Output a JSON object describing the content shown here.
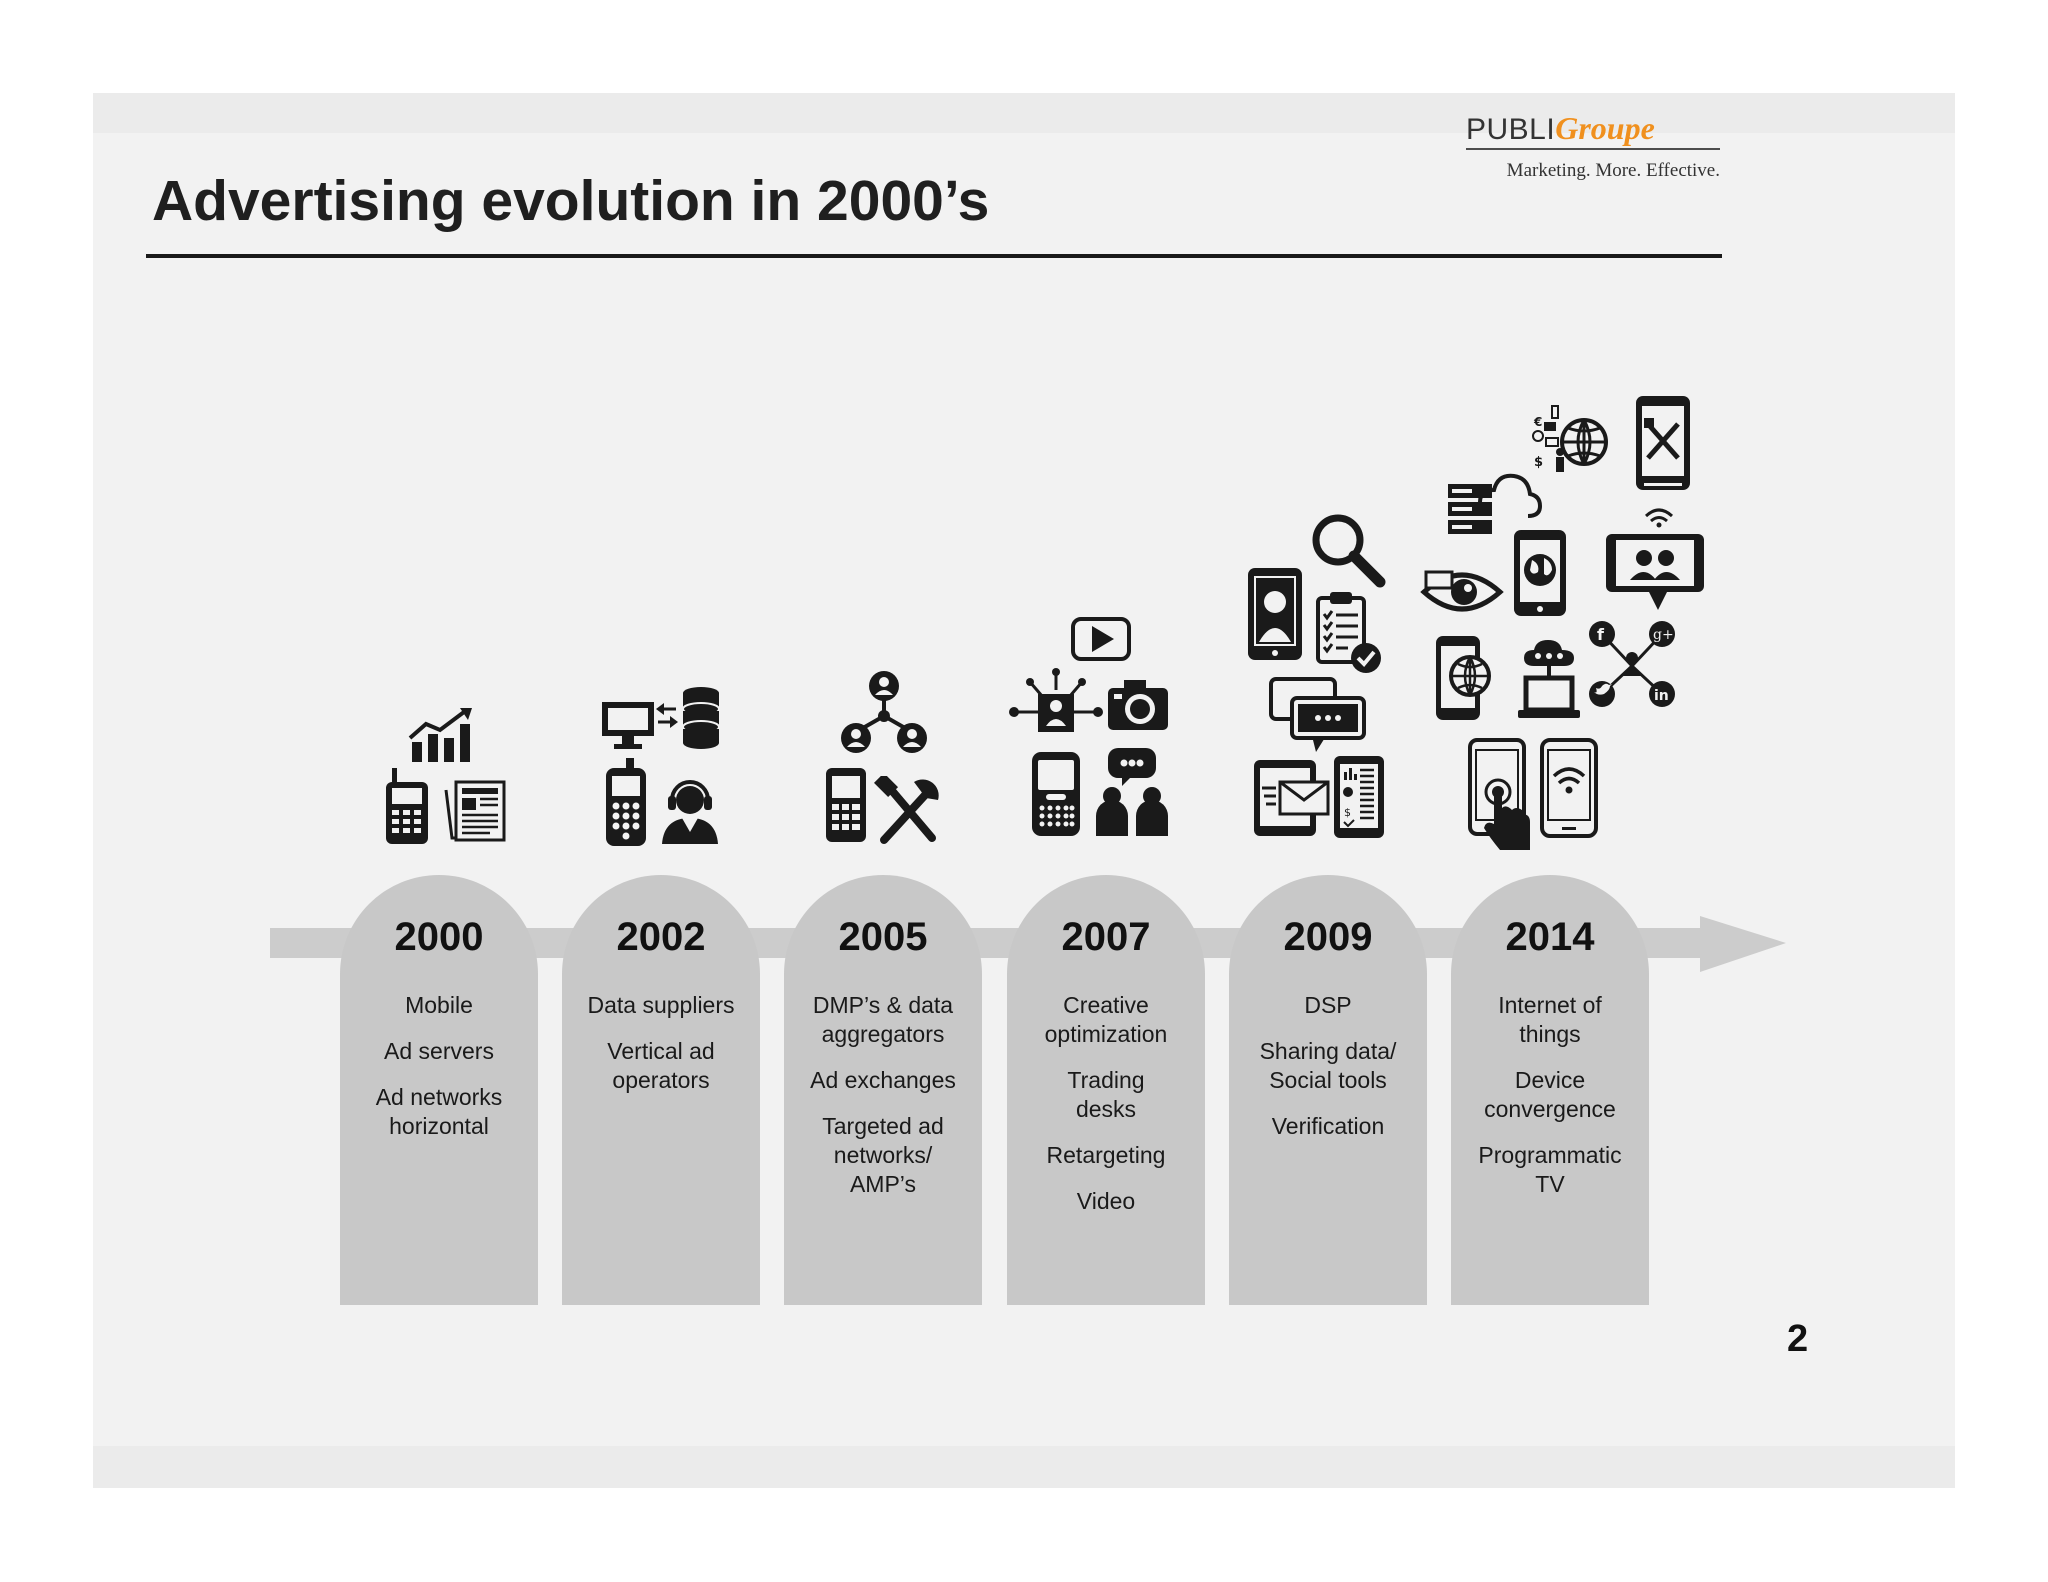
{
  "slide": {
    "title": "Advertising evolution in 2000’s",
    "page_number": "2"
  },
  "logo": {
    "publi": "PUBLI",
    "groupe": "Groupe",
    "tagline": "Marketing. More. Effective.",
    "colors": {
      "brand_orange": "#f0901e",
      "dark": "#333333"
    }
  },
  "timeline": {
    "arrow_color": "#cccccc",
    "column_color": "#c8c8c8",
    "milestones": [
      {
        "year": "2000",
        "items": [
          "Mobile",
          "Ad servers",
          "Ad networks horizontal"
        ],
        "icons": [
          "bar-chart-growth-icon",
          "feature-phone-icon",
          "newspaper-icon"
        ]
      },
      {
        "year": "2002",
        "items": [
          "Data suppliers",
          "Vertical ad operators"
        ],
        "icons": [
          "computer-monitor-icon",
          "database-icon",
          "mobile-phone-icon",
          "call-center-agent-icon"
        ]
      },
      {
        "year": "2005",
        "items": [
          "DMP’s & data aggregators",
          "Ad exchanges",
          "Targeted ad networks/ AMP’s"
        ],
        "icons": [
          "user-network-icon",
          "smartphone-keypad-icon",
          "tools-icon"
        ]
      },
      {
        "year": "2007",
        "items": [
          "Creative optimization",
          "Trading desks",
          "Retargeting",
          "Video"
        ],
        "icons": [
          "video-play-icon",
          "targeted-user-icon",
          "camera-icon",
          "blackberry-icon",
          "people-chat-icon"
        ]
      },
      {
        "year": "2009",
        "items": [
          "DSP",
          "Sharing data/ Social tools",
          "Verification"
        ],
        "icons": [
          "search-magnifier-icon",
          "phone-profile-icon",
          "checklist-icon",
          "chat-bubbles-icon",
          "tablet-mail-icon",
          "phone-dashboard-icon"
        ]
      },
      {
        "year": "2014",
        "items": [
          "Internet of things",
          "Device convergence",
          "Programmatic TV"
        ],
        "icons": [
          "globe-devices-icon",
          "phone-tools-icon",
          "server-cloud-icon",
          "eye-icon",
          "phone-globe-icon",
          "tablet-video-chat-icon",
          "phone-globe-icon",
          "laptop-cloud-icon",
          "social-network-icon",
          "touch-phone-icon",
          "phone-wifi-icon"
        ]
      }
    ]
  }
}
